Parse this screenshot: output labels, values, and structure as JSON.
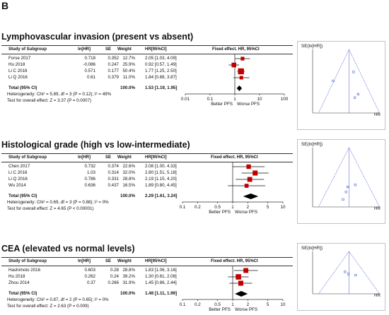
{
  "figure_label": "B",
  "headers": {
    "study": "Study of Subgroup",
    "lnhr": "ln[HR]",
    "se": "SE",
    "weight": "Weight",
    "hrci": "HR[95%CI]",
    "fixed": "Fixed effect. HR, 95%CI",
    "fixed_lvi": "Fixed effect. HR, 95%CI"
  },
  "axis_labels": {
    "better": "Better PFS",
    "worse": "Worse PFS"
  },
  "funnel_labels": {
    "ylabel": "SE(ln[HR])",
    "xlabel": "HR"
  },
  "panels": [
    {
      "title": "Lymphovascular invasion (present vs absent)",
      "rows": [
        {
          "study": "Forse 2017",
          "lnhr": "0.718",
          "se": "0.352",
          "weight": "12.7%",
          "hrci": "2.05 [1.03, 4.09]"
        },
        {
          "study": "Hu 2018",
          "lnhr": "-0.086",
          "se": "0.247",
          "weight": "25.9%",
          "hrci": "0.92 [0.57, 1.49]"
        },
        {
          "study": "Li C 2016",
          "lnhr": "0.571",
          "se": "0.177",
          "weight": "50.4%",
          "hrci": "1.77 [1.25, 2.50]"
        },
        {
          "study": "Li Q 2016",
          "lnhr": "0.61",
          "se": "0.379",
          "weight": "11.0%",
          "hrci": "1.84 [0.88, 3.87]"
        }
      ],
      "total": {
        "label": "Total (95% CI)",
        "weight": "100.0%",
        "hrci": "1.53 [1.19, 1.95]"
      },
      "heterogeneity": "Heterogeneity: Chi² = 5.89, df = 3 (P = 0.12); I² = 49%",
      "overall": "Test for overall effect: Z = 3.37 (P = 0.0007)",
      "ticks": [
        "0.01",
        "0.1",
        "1",
        "10",
        "100"
      ]
    },
    {
      "title": "Histological grade (high vs low-intermediate)",
      "rows": [
        {
          "study": "Chen 2017",
          "lnhr": "0.732",
          "se": "0.374",
          "weight": "22.6%",
          "hrci": "2.08 [1.00, 4.33]"
        },
        {
          "study": "Li C 2016",
          "lnhr": "1.03",
          "se": "0.314",
          "weight": "32.0%",
          "hrci": "2.80 [1.51, 5.18]"
        },
        {
          "study": "Li Q 2016",
          "lnhr": "0.786",
          "se": "0.331",
          "weight": "28.8%",
          "hrci": "2.19 [1.15, 4.20]"
        },
        {
          "study": "Wu 2014",
          "lnhr": "0.636",
          "se": "0.437",
          "weight": "16.5%",
          "hrci": "1.89 [0.80, 4.45]"
        }
      ],
      "total": {
        "label": "Total (95% CI)",
        "weight": "100.0%",
        "hrci": "2.29 [1.61, 3.24]"
      },
      "heterogeneity": "Heterogeneity: Chi² = 0.69, df = 3 (P = 0.88); I² = 0%",
      "overall": "Test for overall effect: Z = 4.65 (P < 0.00001)",
      "ticks": [
        "0.1",
        "0.2",
        "0.5",
        "1",
        "2",
        "5",
        "10"
      ]
    },
    {
      "title": "CEA (elevated vs normal levels)",
      "rows": [
        {
          "study": "Hashimoto 2016",
          "lnhr": "0.603",
          "se": "0.28",
          "weight": "28.8%",
          "hrci": "1.83 [1.06, 3.16]"
        },
        {
          "study": "Hu 2018",
          "lnhr": "0.262",
          "se": "0.24",
          "weight": "39.2%",
          "hrci": "1.30 [0.81, 2.08]"
        },
        {
          "study": "Zhou 2014",
          "lnhr": "0.37",
          "se": "0.266",
          "weight": "31.9%",
          "hrci": "1.45 [0.86, 2.44]"
        }
      ],
      "total": {
        "label": "Total (95% CI)",
        "weight": "100.0%",
        "hrci": "1.48 [1.11, 1.99]"
      },
      "heterogeneity": "Heterogeneity: Chi² = 0.87, df = 2 (P = 0.65); I² = 0%",
      "overall": "Test for overall effect: Z = 2.63 (P = 0.009)",
      "ticks": [
        "0.1",
        "0.2",
        "0.5",
        "1",
        "2",
        "5",
        "10"
      ]
    }
  ],
  "colors": {
    "square": "#c00000",
    "diamond": "#000000",
    "funnel": "#6666dd"
  }
}
